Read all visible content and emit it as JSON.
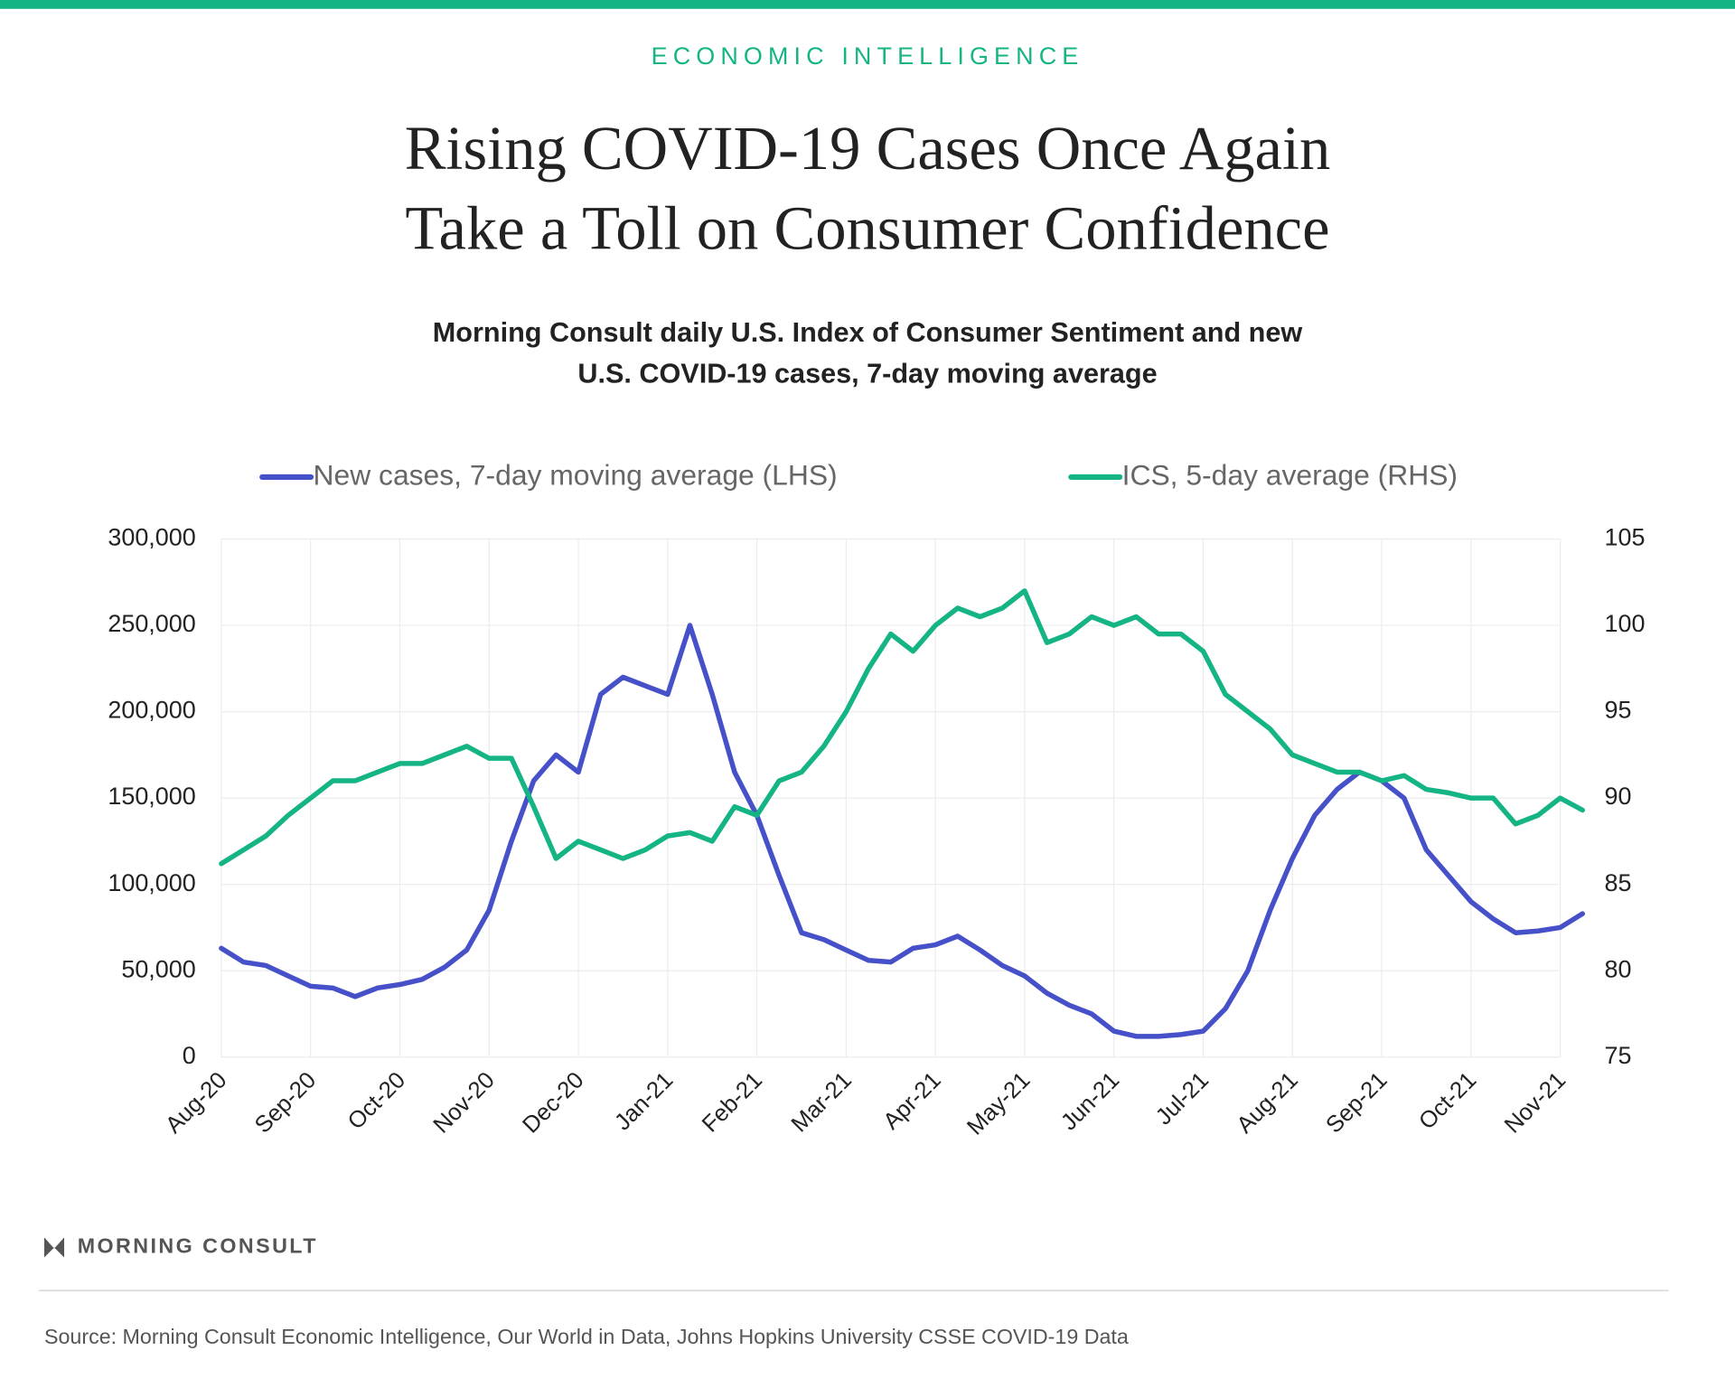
{
  "header": {
    "kicker": "ECONOMIC INTELLIGENCE"
  },
  "chart_data": {
    "type": "line",
    "title": [
      "Rising COVID-19 Cases Once Again",
      "Take a Toll on Consumer Confidence"
    ],
    "subtitle": [
      "Morning Consult daily U.S. Index of Consumer Sentiment and new",
      "U.S. COVID-19 cases, 7-day moving average"
    ],
    "categories": [
      "Aug-20",
      null,
      null,
      null,
      "Sep-20",
      null,
      null,
      null,
      "Oct-20",
      null,
      null,
      null,
      "Nov-20",
      null,
      null,
      null,
      "Dec-20",
      null,
      null,
      null,
      "Jan-21",
      null,
      null,
      null,
      "Feb-21",
      null,
      null,
      null,
      "Mar-21",
      null,
      null,
      null,
      "Apr-21",
      null,
      null,
      null,
      "May-21",
      null,
      null,
      null,
      "Jun-21",
      null,
      null,
      null,
      "Jul-21",
      null,
      null,
      null,
      "Aug-21",
      null,
      null,
      null,
      "Sep-21",
      null,
      null,
      null,
      "Oct-21",
      null,
      null,
      null,
      "Nov-21",
      null
    ],
    "series": [
      {
        "name": "New cases, 7-day moving average (LHS)",
        "color": "#4650c8",
        "axis": "y",
        "values": [
          63000,
          55000,
          53000,
          47000,
          41000,
          40000,
          35000,
          40000,
          42000,
          45000,
          52000,
          62000,
          85000,
          125000,
          160000,
          175000,
          165000,
          210000,
          220000,
          215000,
          210000,
          250000,
          210000,
          165000,
          140000,
          105000,
          72000,
          68000,
          62000,
          56000,
          55000,
          63000,
          65000,
          70000,
          62000,
          53000,
          47000,
          37000,
          30000,
          25000,
          15000,
          12000,
          12000,
          13000,
          15000,
          28000,
          50000,
          85000,
          115000,
          140000,
          155000,
          165000,
          160000,
          150000,
          120000,
          105000,
          90000,
          80000,
          72000,
          73000,
          75000,
          83000
        ]
      },
      {
        "name": "ICS, 5-day average (RHS)",
        "color": "#14b485",
        "axis": "y2",
        "values": [
          86.2,
          87,
          87.8,
          89,
          90,
          91,
          91,
          91.5,
          92,
          92,
          92.5,
          93,
          92.3,
          92.3,
          89.5,
          86.5,
          87.5,
          87,
          86.5,
          87,
          87.8,
          88,
          87.5,
          89.5,
          89,
          91,
          91.5,
          93,
          95,
          97.5,
          99.5,
          98.5,
          100,
          101,
          100.5,
          101,
          102,
          99,
          99.5,
          100.5,
          100,
          100.5,
          99.5,
          99.5,
          98.5,
          96,
          95,
          94,
          92.5,
          92,
          91.5,
          91.5,
          91,
          91.3,
          90.5,
          90.3,
          90,
          90,
          88.5,
          89,
          90,
          89.3
        ]
      }
    ],
    "ylim": [
      0,
      300000
    ],
    "yticks": [
      0,
      {
        "value": 50000,
        "label": "50,000"
      },
      {
        "value": 100000,
        "label": "100,000"
      },
      {
        "value": 150000,
        "label": "150,000"
      },
      {
        "value": 200000,
        "label": "200,000"
      },
      {
        "value": 250000,
        "label": "250,000"
      },
      {
        "value": 300000,
        "label": "300,000"
      }
    ],
    "y2lim": [
      75,
      105
    ],
    "y2ticks": [
      75,
      80,
      85,
      90,
      95,
      100,
      105
    ],
    "grid": true,
    "legend": "top"
  },
  "footer": {
    "logo": "MORNING CONSULT",
    "source": "Source: Morning Consult Economic Intelligence, Our World in Data, Johns Hopkins University CSSE COVID-19 Data"
  }
}
